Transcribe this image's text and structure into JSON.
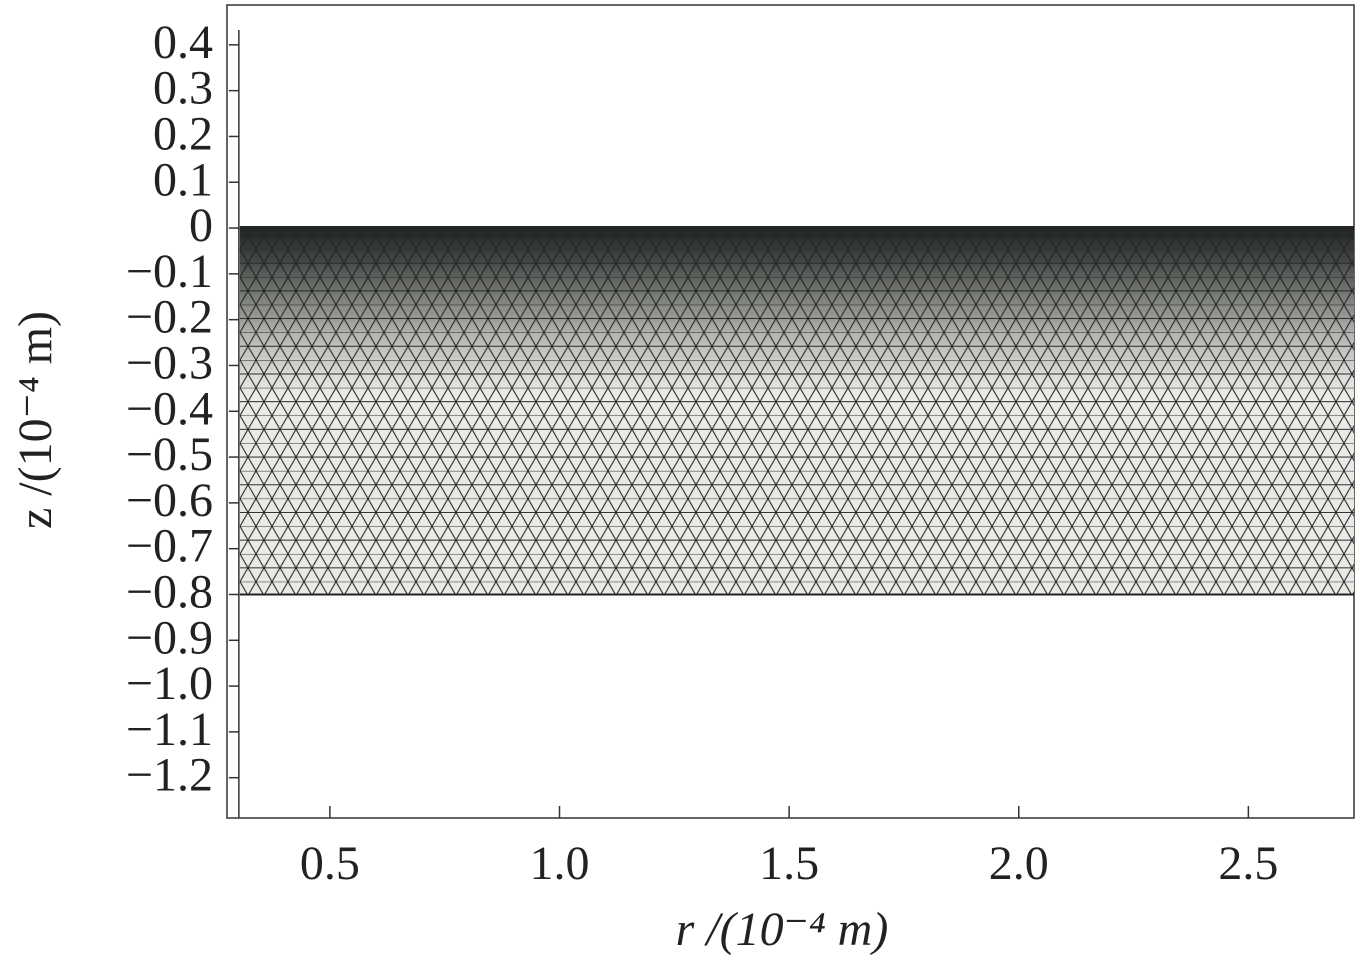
{
  "chart_data": {
    "type": "mesh",
    "x_label": "r /(10⁻⁴ m)",
    "y_label": "z /(10⁻⁴ m)",
    "xlim": [
      0.276,
      2.73
    ],
    "ylim": [
      -1.288,
      0.487
    ],
    "xticks": [
      0.5,
      {
        "value": 1.0,
        "label": "1.0"
      },
      1.5,
      {
        "value": 2.0,
        "label": "2.0"
      },
      2.5
    ],
    "yticks": [
      0.4,
      0.3,
      0.2,
      0.1,
      0,
      {
        "value": -0.1,
        "label": "−0.1"
      },
      {
        "value": -0.2,
        "label": "−0.2"
      },
      {
        "value": -0.3,
        "label": "−0.3"
      },
      {
        "value": -0.4,
        "label": "−0.4"
      },
      {
        "value": -0.5,
        "label": "−0.5"
      },
      {
        "value": -0.6,
        "label": "−0.6"
      },
      {
        "value": -0.7,
        "label": "−0.7"
      },
      {
        "value": -0.8,
        "label": "−0.8"
      },
      {
        "value": -0.9,
        "label": "−0.9"
      },
      {
        "value": -1.0,
        "label": "−1.0"
      },
      {
        "value": -1.1,
        "label": "−1.1"
      },
      {
        "value": -1.2,
        "label": "−1.2"
      }
    ],
    "mesh_rlim": [
      0.304,
      2.73
    ],
    "mesh_zlim": [
      -0.8,
      0
    ],
    "color": "#222622"
  }
}
